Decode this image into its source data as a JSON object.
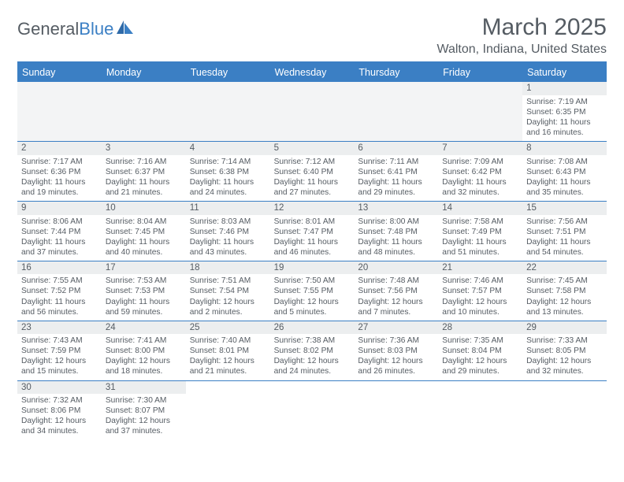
{
  "logo": {
    "word1": "General",
    "word2": "Blue"
  },
  "title": "March 2025",
  "location": "Walton, Indiana, United States",
  "colors": {
    "accent": "#3b7fc4",
    "text": "#555c63",
    "daynum_bg": "#eceeef",
    "blank_bg": "#f3f4f5",
    "white": "#ffffff"
  },
  "calendar": {
    "daysOfWeek": [
      "Sunday",
      "Monday",
      "Tuesday",
      "Wednesday",
      "Thursday",
      "Friday",
      "Saturday"
    ],
    "weeks": [
      [
        {
          "blank": true
        },
        {
          "blank": true
        },
        {
          "blank": true
        },
        {
          "blank": true
        },
        {
          "blank": true
        },
        {
          "blank": true
        },
        {
          "n": "1",
          "sunrise": "Sunrise: 7:19 AM",
          "sunset": "Sunset: 6:35 PM",
          "day1": "Daylight: 11 hours",
          "day2": "and 16 minutes."
        }
      ],
      [
        {
          "n": "2",
          "sunrise": "Sunrise: 7:17 AM",
          "sunset": "Sunset: 6:36 PM",
          "day1": "Daylight: 11 hours",
          "day2": "and 19 minutes."
        },
        {
          "n": "3",
          "sunrise": "Sunrise: 7:16 AM",
          "sunset": "Sunset: 6:37 PM",
          "day1": "Daylight: 11 hours",
          "day2": "and 21 minutes."
        },
        {
          "n": "4",
          "sunrise": "Sunrise: 7:14 AM",
          "sunset": "Sunset: 6:38 PM",
          "day1": "Daylight: 11 hours",
          "day2": "and 24 minutes."
        },
        {
          "n": "5",
          "sunrise": "Sunrise: 7:12 AM",
          "sunset": "Sunset: 6:40 PM",
          "day1": "Daylight: 11 hours",
          "day2": "and 27 minutes."
        },
        {
          "n": "6",
          "sunrise": "Sunrise: 7:11 AM",
          "sunset": "Sunset: 6:41 PM",
          "day1": "Daylight: 11 hours",
          "day2": "and 29 minutes."
        },
        {
          "n": "7",
          "sunrise": "Sunrise: 7:09 AM",
          "sunset": "Sunset: 6:42 PM",
          "day1": "Daylight: 11 hours",
          "day2": "and 32 minutes."
        },
        {
          "n": "8",
          "sunrise": "Sunrise: 7:08 AM",
          "sunset": "Sunset: 6:43 PM",
          "day1": "Daylight: 11 hours",
          "day2": "and 35 minutes."
        }
      ],
      [
        {
          "n": "9",
          "sunrise": "Sunrise: 8:06 AM",
          "sunset": "Sunset: 7:44 PM",
          "day1": "Daylight: 11 hours",
          "day2": "and 37 minutes."
        },
        {
          "n": "10",
          "sunrise": "Sunrise: 8:04 AM",
          "sunset": "Sunset: 7:45 PM",
          "day1": "Daylight: 11 hours",
          "day2": "and 40 minutes."
        },
        {
          "n": "11",
          "sunrise": "Sunrise: 8:03 AM",
          "sunset": "Sunset: 7:46 PM",
          "day1": "Daylight: 11 hours",
          "day2": "and 43 minutes."
        },
        {
          "n": "12",
          "sunrise": "Sunrise: 8:01 AM",
          "sunset": "Sunset: 7:47 PM",
          "day1": "Daylight: 11 hours",
          "day2": "and 46 minutes."
        },
        {
          "n": "13",
          "sunrise": "Sunrise: 8:00 AM",
          "sunset": "Sunset: 7:48 PM",
          "day1": "Daylight: 11 hours",
          "day2": "and 48 minutes."
        },
        {
          "n": "14",
          "sunrise": "Sunrise: 7:58 AM",
          "sunset": "Sunset: 7:49 PM",
          "day1": "Daylight: 11 hours",
          "day2": "and 51 minutes."
        },
        {
          "n": "15",
          "sunrise": "Sunrise: 7:56 AM",
          "sunset": "Sunset: 7:51 PM",
          "day1": "Daylight: 11 hours",
          "day2": "and 54 minutes."
        }
      ],
      [
        {
          "n": "16",
          "sunrise": "Sunrise: 7:55 AM",
          "sunset": "Sunset: 7:52 PM",
          "day1": "Daylight: 11 hours",
          "day2": "and 56 minutes."
        },
        {
          "n": "17",
          "sunrise": "Sunrise: 7:53 AM",
          "sunset": "Sunset: 7:53 PM",
          "day1": "Daylight: 11 hours",
          "day2": "and 59 minutes."
        },
        {
          "n": "18",
          "sunrise": "Sunrise: 7:51 AM",
          "sunset": "Sunset: 7:54 PM",
          "day1": "Daylight: 12 hours",
          "day2": "and 2 minutes."
        },
        {
          "n": "19",
          "sunrise": "Sunrise: 7:50 AM",
          "sunset": "Sunset: 7:55 PM",
          "day1": "Daylight: 12 hours",
          "day2": "and 5 minutes."
        },
        {
          "n": "20",
          "sunrise": "Sunrise: 7:48 AM",
          "sunset": "Sunset: 7:56 PM",
          "day1": "Daylight: 12 hours",
          "day2": "and 7 minutes."
        },
        {
          "n": "21",
          "sunrise": "Sunrise: 7:46 AM",
          "sunset": "Sunset: 7:57 PM",
          "day1": "Daylight: 12 hours",
          "day2": "and 10 minutes."
        },
        {
          "n": "22",
          "sunrise": "Sunrise: 7:45 AM",
          "sunset": "Sunset: 7:58 PM",
          "day1": "Daylight: 12 hours",
          "day2": "and 13 minutes."
        }
      ],
      [
        {
          "n": "23",
          "sunrise": "Sunrise: 7:43 AM",
          "sunset": "Sunset: 7:59 PM",
          "day1": "Daylight: 12 hours",
          "day2": "and 15 minutes."
        },
        {
          "n": "24",
          "sunrise": "Sunrise: 7:41 AM",
          "sunset": "Sunset: 8:00 PM",
          "day1": "Daylight: 12 hours",
          "day2": "and 18 minutes."
        },
        {
          "n": "25",
          "sunrise": "Sunrise: 7:40 AM",
          "sunset": "Sunset: 8:01 PM",
          "day1": "Daylight: 12 hours",
          "day2": "and 21 minutes."
        },
        {
          "n": "26",
          "sunrise": "Sunrise: 7:38 AM",
          "sunset": "Sunset: 8:02 PM",
          "day1": "Daylight: 12 hours",
          "day2": "and 24 minutes."
        },
        {
          "n": "27",
          "sunrise": "Sunrise: 7:36 AM",
          "sunset": "Sunset: 8:03 PM",
          "day1": "Daylight: 12 hours",
          "day2": "and 26 minutes."
        },
        {
          "n": "28",
          "sunrise": "Sunrise: 7:35 AM",
          "sunset": "Sunset: 8:04 PM",
          "day1": "Daylight: 12 hours",
          "day2": "and 29 minutes."
        },
        {
          "n": "29",
          "sunrise": "Sunrise: 7:33 AM",
          "sunset": "Sunset: 8:05 PM",
          "day1": "Daylight: 12 hours",
          "day2": "and 32 minutes."
        }
      ],
      [
        {
          "n": "30",
          "sunrise": "Sunrise: 7:32 AM",
          "sunset": "Sunset: 8:06 PM",
          "day1": "Daylight: 12 hours",
          "day2": "and 34 minutes."
        },
        {
          "n": "31",
          "sunrise": "Sunrise: 7:30 AM",
          "sunset": "Sunset: 8:07 PM",
          "day1": "Daylight: 12 hours",
          "day2": "and 37 minutes."
        },
        {
          "blank": true
        },
        {
          "blank": true
        },
        {
          "blank": true
        },
        {
          "blank": true
        },
        {
          "blank": true
        }
      ]
    ]
  }
}
